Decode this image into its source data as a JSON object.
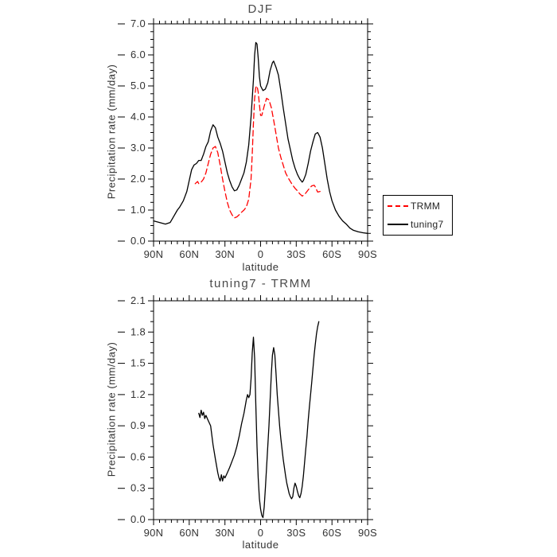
{
  "chart_data": [
    {
      "type": "line",
      "title": "DJF",
      "xlabel": "latitude",
      "ylabel": "Precipitation rate (mm/day)",
      "xlim": [
        90,
        -90
      ],
      "ylim": [
        0.0,
        7.0
      ],
      "x_minor_step": 5,
      "y_major_step": 1.0,
      "y_minor_step": 0.25,
      "x_ticks": [
        {
          "lat": 90,
          "label": "90N"
        },
        {
          "lat": 60,
          "label": "60N"
        },
        {
          "lat": 30,
          "label": "30N"
        },
        {
          "lat": 0,
          "label": "0"
        },
        {
          "lat": -30,
          "label": "30S"
        },
        {
          "lat": -60,
          "label": "60S"
        },
        {
          "lat": -90,
          "label": "90S"
        }
      ],
      "y_ticks": [
        "0.0",
        "1.0",
        "2.0",
        "3.0",
        "4.0",
        "5.0",
        "6.0",
        "7.0"
      ],
      "legend": {
        "position": "right",
        "entries": [
          {
            "label": "TRMM",
            "color": "#ff0000",
            "line_style": "dashed"
          },
          {
            "label": "tuning7",
            "color": "#000000",
            "line_style": "solid"
          }
        ]
      },
      "series": [
        {
          "name": "tuning7",
          "color": "#000000",
          "line_style": "solid",
          "points": [
            [
              90,
              0.65
            ],
            [
              85,
              0.6
            ],
            [
              80,
              0.55
            ],
            [
              76,
              0.6
            ],
            [
              73,
              0.8
            ],
            [
              70,
              1.0
            ],
            [
              68,
              1.1
            ],
            [
              65,
              1.3
            ],
            [
              62,
              1.6
            ],
            [
              60,
              1.95
            ],
            [
              58,
              2.3
            ],
            [
              56,
              2.45
            ],
            [
              54,
              2.5
            ],
            [
              52,
              2.6
            ],
            [
              50,
              2.6
            ],
            [
              48,
              2.8
            ],
            [
              46,
              3.05
            ],
            [
              44,
              3.2
            ],
            [
              42,
              3.55
            ],
            [
              40,
              3.75
            ],
            [
              38,
              3.65
            ],
            [
              36,
              3.35
            ],
            [
              34,
              3.15
            ],
            [
              32,
              2.9
            ],
            [
              30,
              2.55
            ],
            [
              28,
              2.2
            ],
            [
              26,
              1.95
            ],
            [
              24,
              1.75
            ],
            [
              22,
              1.62
            ],
            [
              20,
              1.65
            ],
            [
              18,
              1.8
            ],
            [
              16,
              2.0
            ],
            [
              14,
              2.2
            ],
            [
              12,
              2.55
            ],
            [
              10,
              3.1
            ],
            [
              8,
              4.0
            ],
            [
              6,
              5.2
            ],
            [
              5,
              6.0
            ],
            [
              4,
              6.4
            ],
            [
              3,
              6.35
            ],
            [
              2,
              5.9
            ],
            [
              1,
              5.3
            ],
            [
              0,
              5.0
            ],
            [
              -2,
              4.85
            ],
            [
              -4,
              4.9
            ],
            [
              -6,
              5.1
            ],
            [
              -8,
              5.5
            ],
            [
              -10,
              5.75
            ],
            [
              -11,
              5.8
            ],
            [
              -13,
              5.6
            ],
            [
              -15,
              5.35
            ],
            [
              -17,
              4.85
            ],
            [
              -19,
              4.3
            ],
            [
              -21,
              3.8
            ],
            [
              -23,
              3.3
            ],
            [
              -25,
              2.95
            ],
            [
              -27,
              2.6
            ],
            [
              -29,
              2.35
            ],
            [
              -31,
              2.15
            ],
            [
              -33,
              2.0
            ],
            [
              -35,
              1.9
            ],
            [
              -36,
              1.95
            ],
            [
              -38,
              2.15
            ],
            [
              -40,
              2.5
            ],
            [
              -42,
              2.9
            ],
            [
              -44,
              3.2
            ],
            [
              -46,
              3.45
            ],
            [
              -48,
              3.5
            ],
            [
              -50,
              3.35
            ],
            [
              -52,
              3.0
            ],
            [
              -54,
              2.5
            ],
            [
              -56,
              2.0
            ],
            [
              -58,
              1.6
            ],
            [
              -60,
              1.3
            ],
            [
              -63,
              1.0
            ],
            [
              -66,
              0.8
            ],
            [
              -69,
              0.65
            ],
            [
              -72,
              0.55
            ],
            [
              -75,
              0.42
            ],
            [
              -78,
              0.35
            ],
            [
              -82,
              0.3
            ],
            [
              -86,
              0.27
            ],
            [
              -90,
              0.25
            ]
          ]
        },
        {
          "name": "TRMM",
          "color": "#ff0000",
          "line_style": "dashed",
          "points": [
            [
              55,
              1.85
            ],
            [
              53,
              1.92
            ],
            [
              52,
              1.85
            ],
            [
              50,
              1.9
            ],
            [
              48,
              2.0
            ],
            [
              46,
              2.2
            ],
            [
              44,
              2.5
            ],
            [
              42,
              2.8
            ],
            [
              40,
              3.0
            ],
            [
              38,
              3.05
            ],
            [
              36,
              2.85
            ],
            [
              34,
              2.45
            ],
            [
              32,
              2.0
            ],
            [
              30,
              1.6
            ],
            [
              28,
              1.25
            ],
            [
              26,
              1.0
            ],
            [
              24,
              0.85
            ],
            [
              22,
              0.75
            ],
            [
              20,
              0.78
            ],
            [
              18,
              0.85
            ],
            [
              16,
              0.93
            ],
            [
              14,
              1.0
            ],
            [
              12,
              1.1
            ],
            [
              10,
              1.35
            ],
            [
              8,
              2.0
            ],
            [
              7,
              2.8
            ],
            [
              6,
              3.8
            ],
            [
              5,
              4.6
            ],
            [
              4,
              4.95
            ],
            [
              3,
              5.0
            ],
            [
              2,
              4.8
            ],
            [
              1,
              4.4
            ],
            [
              0,
              4.05
            ],
            [
              -1,
              4.05
            ],
            [
              -3,
              4.35
            ],
            [
              -5,
              4.6
            ],
            [
              -7,
              4.55
            ],
            [
              -9,
              4.3
            ],
            [
              -11,
              3.9
            ],
            [
              -13,
              3.45
            ],
            [
              -15,
              3.0
            ],
            [
              -17,
              2.7
            ],
            [
              -19,
              2.45
            ],
            [
              -21,
              2.2
            ],
            [
              -23,
              2.05
            ],
            [
              -25,
              1.92
            ],
            [
              -27,
              1.8
            ],
            [
              -29,
              1.7
            ],
            [
              -31,
              1.62
            ],
            [
              -33,
              1.52
            ],
            [
              -35,
              1.45
            ],
            [
              -37,
              1.5
            ],
            [
              -39,
              1.6
            ],
            [
              -41,
              1.7
            ],
            [
              -43,
              1.78
            ],
            [
              -45,
              1.8
            ],
            [
              -46,
              1.75
            ],
            [
              -48,
              1.58
            ],
            [
              -50,
              1.6
            ]
          ]
        }
      ]
    },
    {
      "type": "line",
      "title": "tuning7 - TRMM",
      "xlabel": "latitude",
      "ylabel": "Precipitation rate (mm/day)",
      "xlim": [
        90,
        -90
      ],
      "ylim": [
        0.0,
        2.1
      ],
      "x_minor_step": 5,
      "y_major_step": 0.3,
      "y_minor_step": 0.1,
      "x_ticks": [
        {
          "lat": 90,
          "label": "90N"
        },
        {
          "lat": 60,
          "label": "60N"
        },
        {
          "lat": 30,
          "label": "30N"
        },
        {
          "lat": 0,
          "label": "0"
        },
        {
          "lat": -30,
          "label": "30S"
        },
        {
          "lat": -60,
          "label": "60S"
        },
        {
          "lat": -90,
          "label": "90S"
        }
      ],
      "y_ticks": [
        "0.0",
        "0.3",
        "0.6",
        "0.9",
        "1.2",
        "1.5",
        "1.8",
        "2.1"
      ],
      "series": [
        {
          "name": "tuning7 - TRMM",
          "color": "#000000",
          "line_style": "solid",
          "points": [
            [
              52,
              1.02
            ],
            [
              51,
              0.98
            ],
            [
              50,
              1.05
            ],
            [
              49,
              1.0
            ],
            [
              48,
              1.03
            ],
            [
              47,
              0.97
            ],
            [
              46,
              1.0
            ],
            [
              44,
              0.95
            ],
            [
              42,
              0.9
            ],
            [
              40,
              0.72
            ],
            [
              38,
              0.58
            ],
            [
              36,
              0.45
            ],
            [
              35,
              0.4
            ],
            [
              34,
              0.37
            ],
            [
              33,
              0.43
            ],
            [
              32,
              0.37
            ],
            [
              31,
              0.42
            ],
            [
              30,
              0.4
            ],
            [
              28,
              0.45
            ],
            [
              26,
              0.5
            ],
            [
              24,
              0.56
            ],
            [
              22,
              0.62
            ],
            [
              20,
              0.7
            ],
            [
              18,
              0.8
            ],
            [
              16,
              0.92
            ],
            [
              14,
              1.02
            ],
            [
              12,
              1.15
            ],
            [
              11,
              1.2
            ],
            [
              10,
              1.17
            ],
            [
              9,
              1.2
            ],
            [
              8,
              1.35
            ],
            [
              7,
              1.6
            ],
            [
              6,
              1.75
            ],
            [
              5,
              1.55
            ],
            [
              4,
              1.1
            ],
            [
              3,
              0.7
            ],
            [
              2,
              0.4
            ],
            [
              1,
              0.2
            ],
            [
              0,
              0.1
            ],
            [
              -1,
              0.04
            ],
            [
              -2,
              0.02
            ],
            [
              -3,
              0.12
            ],
            [
              -4,
              0.3
            ],
            [
              -5,
              0.5
            ],
            [
              -6,
              0.7
            ],
            [
              -7,
              0.9
            ],
            [
              -8,
              1.15
            ],
            [
              -9,
              1.4
            ],
            [
              -10,
              1.58
            ],
            [
              -11,
              1.65
            ],
            [
              -12,
              1.58
            ],
            [
              -13,
              1.4
            ],
            [
              -14,
              1.2
            ],
            [
              -15,
              1.05
            ],
            [
              -16,
              0.9
            ],
            [
              -17,
              0.78
            ],
            [
              -18,
              0.68
            ],
            [
              -19,
              0.58
            ],
            [
              -20,
              0.5
            ],
            [
              -21,
              0.42
            ],
            [
              -22,
              0.35
            ],
            [
              -23,
              0.3
            ],
            [
              -24,
              0.25
            ],
            [
              -25,
              0.22
            ],
            [
              -26,
              0.2
            ],
            [
              -27,
              0.22
            ],
            [
              -28,
              0.3
            ],
            [
              -29,
              0.35
            ],
            [
              -30,
              0.32
            ],
            [
              -31,
              0.27
            ],
            [
              -32,
              0.23
            ],
            [
              -33,
              0.21
            ],
            [
              -34,
              0.25
            ],
            [
              -35,
              0.32
            ],
            [
              -36,
              0.42
            ],
            [
              -37,
              0.55
            ],
            [
              -38,
              0.68
            ],
            [
              -39,
              0.8
            ],
            [
              -40,
              0.95
            ],
            [
              -41,
              1.08
            ],
            [
              -42,
              1.2
            ],
            [
              -43,
              1.32
            ],
            [
              -44,
              1.45
            ],
            [
              -45,
              1.58
            ],
            [
              -46,
              1.68
            ],
            [
              -47,
              1.78
            ],
            [
              -48,
              1.85
            ],
            [
              -49,
              1.9
            ]
          ]
        }
      ]
    }
  ]
}
